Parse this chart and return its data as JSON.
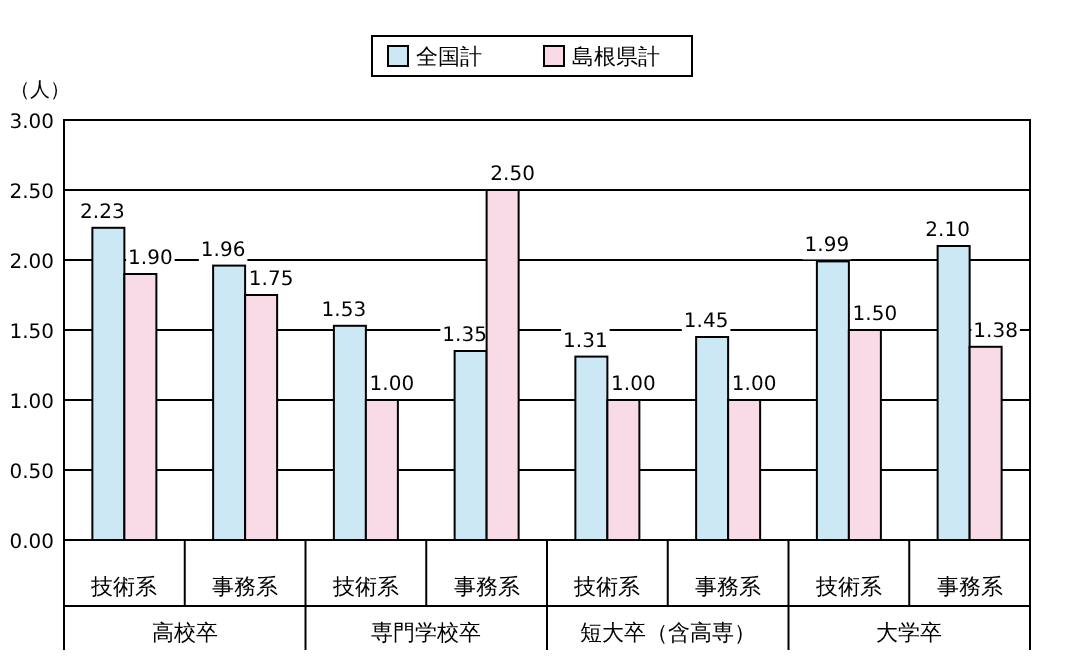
{
  "chart_data": {
    "type": "bar",
    "ylabel": "（人）",
    "categories": [
      "技術系",
      "事務系",
      "技術系",
      "事務系",
      "技術系",
      "事務系",
      "技術系",
      "事務系"
    ],
    "series": [
      {
        "name": "全国計",
        "color": "#cce8f5",
        "values": [
          2.23,
          1.96,
          1.53,
          1.35,
          1.31,
          1.45,
          1.99,
          2.1
        ],
        "value_labels": [
          "2.23",
          "1.96",
          "1.53",
          "1.35",
          "1.31",
          "1.45",
          "1.99",
          "2.10"
        ]
      },
      {
        "name": "島根県計",
        "color": "#f9dbe8",
        "values": [
          1.9,
          1.75,
          1.0,
          2.5,
          1.0,
          1.0,
          1.5,
          1.38
        ],
        "value_labels": [
          "1.90",
          "1.75",
          "1.00",
          "2.50",
          "1.00",
          "1.00",
          "1.50",
          "1.38"
        ]
      }
    ],
    "annotations": [
      "高校卒",
      "専門学校卒",
      "短大卒（含高専）",
      "大学卒"
    ],
    "ylim": [
      0,
      3
    ],
    "yticks": [
      {
        "value": 0,
        "label": "0.00"
      },
      {
        "value": 0.5,
        "label": "0.50"
      },
      {
        "value": 1,
        "label": "1.00"
      },
      {
        "value": 1.5,
        "label": "1.50"
      },
      {
        "value": 2,
        "label": "2.00"
      },
      {
        "value": 2.5,
        "label": "2.50"
      },
      {
        "value": 3,
        "label": "3.00"
      }
    ],
    "grid": "y",
    "legend": "top"
  }
}
